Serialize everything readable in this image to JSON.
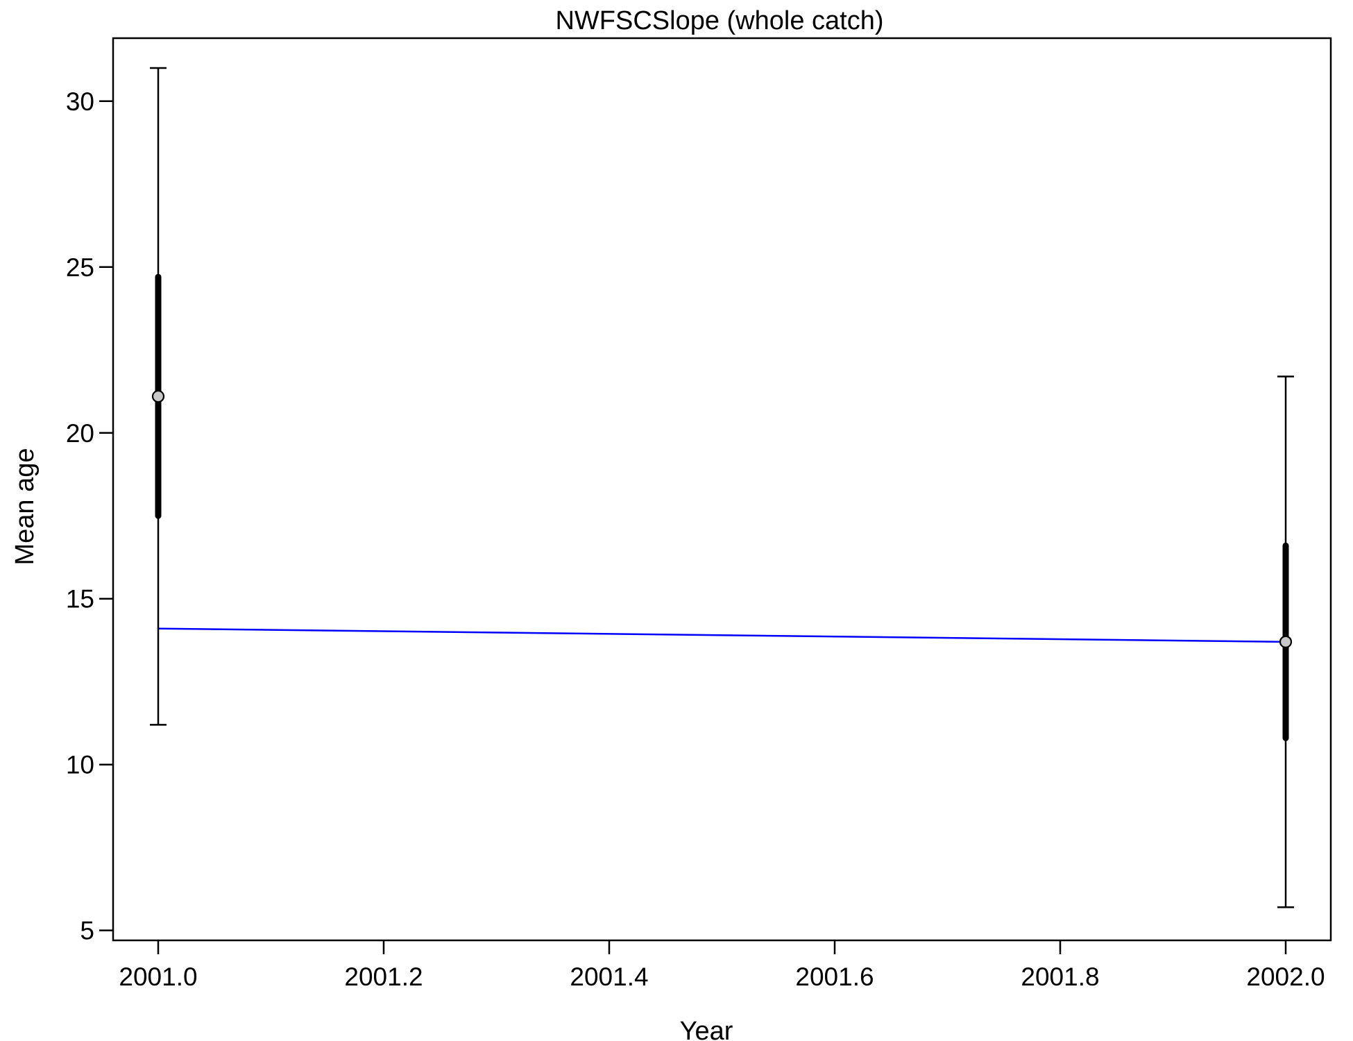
{
  "chart_data": {
    "type": "scatter",
    "title": "NWFSCSlope (whole catch)",
    "xlabel": "Year",
    "ylabel": "Mean age",
    "xlim": [
      1900.96,
      2002.04
    ],
    "ylim": [
      4.7,
      31.9
    ],
    "x_ticks": [
      2001.0,
      2001.2,
      2001.4,
      2001.6,
      2001.8,
      2002.0
    ],
    "x_tick_labels": [
      "2001.0",
      "2001.2",
      "2001.4",
      "2001.6",
      "2001.8",
      "2002.0"
    ],
    "y_ticks": [
      5,
      10,
      15,
      20,
      25,
      30
    ],
    "y_tick_labels": [
      "5",
      "10",
      "15",
      "20",
      "25",
      "30"
    ],
    "grid": false,
    "legend": "none",
    "series": [
      {
        "kind": "observed",
        "marker_color": "#c8c8c8",
        "points": [
          {
            "x": 2001.0,
            "y": 21.1,
            "inner_low": 17.5,
            "inner_high": 24.7,
            "outer_low": 11.2,
            "outer_high": 31.0
          },
          {
            "x": 2002.0,
            "y": 13.7,
            "inner_low": 10.8,
            "inner_high": 16.6,
            "outer_low": 5.7,
            "outer_high": 21.7
          }
        ]
      },
      {
        "kind": "expected",
        "color": "#0000ff",
        "x": [
          2001.0,
          2002.0
        ],
        "y": [
          14.1,
          13.7
        ]
      }
    ]
  }
}
